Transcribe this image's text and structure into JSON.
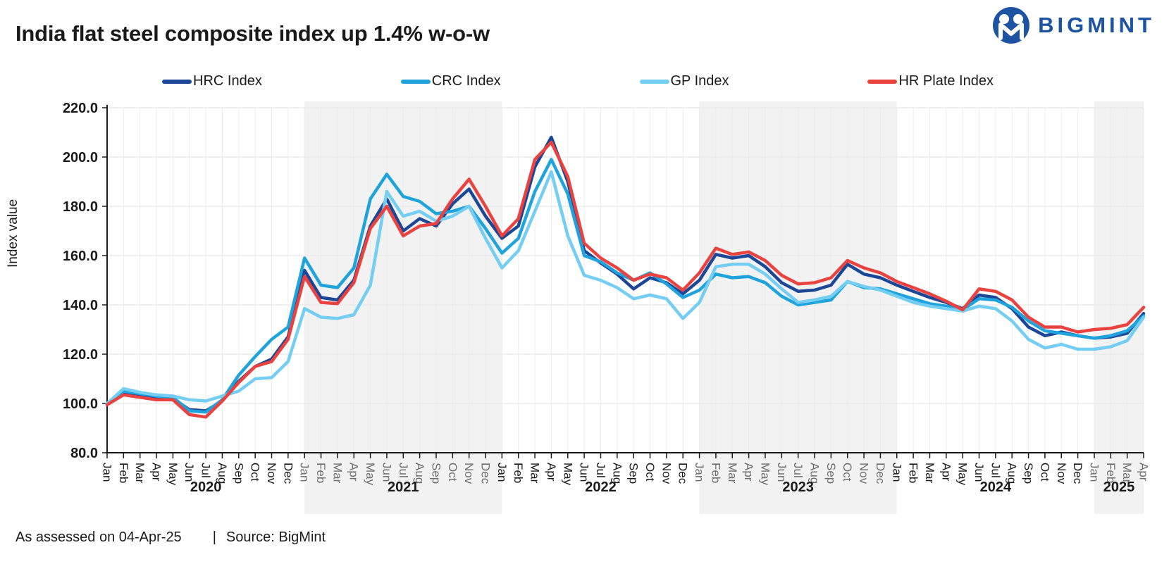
{
  "header": {
    "title": "India flat steel composite index up 1.4% w-o-w",
    "brand": "BIGMINT",
    "brand_color": "#1d53a3"
  },
  "footer": {
    "assessed": "As assessed on 04-Apr-25",
    "separator": "|",
    "source": "Source: BigMint"
  },
  "chart_data": {
    "type": "line",
    "title": "India flat steel composite index up 1.4% w-o-w",
    "ylabel": "Index value",
    "xlabel": "",
    "ylim": [
      80,
      220
    ],
    "ytick_step": 20,
    "grid": true,
    "legend_position": "top",
    "month_labels": [
      "Jan",
      "Feb",
      "Mar",
      "Apr",
      "May",
      "Jun",
      "Jul",
      "Aug",
      "Sep",
      "Oct",
      "Nov",
      "Dec"
    ],
    "years": [
      {
        "label": "2020",
        "months": 12,
        "shaded": false
      },
      {
        "label": "2021",
        "months": 12,
        "shaded": true
      },
      {
        "label": "2022",
        "months": 12,
        "shaded": false
      },
      {
        "label": "2023",
        "months": 12,
        "shaded": true
      },
      {
        "label": "2024",
        "months": 12,
        "shaded": false
      },
      {
        "label": "2025",
        "months": 4,
        "shaded": true
      }
    ],
    "band_color": "#f2f2f2",
    "grid_color": "#e8e8e8",
    "axis_color": "#1a1a1a",
    "shaded_month_label_color": "#6e6e6e",
    "series": [
      {
        "name": "HRC Index",
        "color": "#1c4697",
        "values": [
          100,
          104.5,
          103.5,
          102.5,
          102,
          97.5,
          97,
          101,
          109,
          115,
          118,
          127,
          154,
          143,
          142,
          150,
          172,
          183,
          170,
          175,
          172,
          181,
          187,
          176,
          167,
          172,
          196,
          208,
          190,
          162,
          157,
          152.5,
          146.5,
          151,
          149,
          144.5,
          150,
          160.5,
          159,
          160,
          155.5,
          149,
          145.5,
          146,
          148,
          156.5,
          152.5,
          151,
          148,
          145.5,
          143,
          141,
          138.5,
          144,
          143,
          138.5,
          131,
          127.5,
          129,
          127.5,
          126.5,
          127,
          128.5,
          136.5
        ]
      },
      {
        "name": "CRC Index",
        "color": "#1fa3dc",
        "values": [
          100,
          105,
          104,
          103,
          102.5,
          97,
          96.5,
          101.5,
          111.5,
          119,
          126,
          131,
          159,
          148,
          147,
          155,
          183,
          193,
          184,
          182,
          177,
          178,
          180,
          171,
          161,
          167,
          186,
          199,
          185,
          160,
          157.5,
          153,
          150,
          153,
          148.5,
          143,
          146,
          152.5,
          151,
          151.5,
          149,
          143.5,
          140,
          141,
          142,
          149.5,
          147,
          146.5,
          144.5,
          142.5,
          140.5,
          139.5,
          138,
          142.5,
          142,
          139,
          133.5,
          129.5,
          128.5,
          127.5,
          126.5,
          127.5,
          129.5,
          135.5
        ]
      },
      {
        "name": "GP Index",
        "color": "#74cdf2",
        "values": [
          100,
          106,
          104.5,
          103.5,
          103,
          101.5,
          101,
          103,
          105,
          110,
          110.5,
          117,
          138.5,
          135,
          134.5,
          136,
          148,
          186,
          176,
          178,
          174,
          176,
          180,
          167,
          155,
          162,
          178,
          194,
          168,
          152,
          150,
          147,
          142.5,
          144,
          142.5,
          134.5,
          141,
          155.5,
          156.5,
          156.5,
          152.5,
          146.5,
          141,
          142,
          143.5,
          149.5,
          147.5,
          146,
          143.5,
          141,
          139.5,
          138.5,
          137.5,
          139.5,
          138.5,
          133.5,
          126,
          122.5,
          124,
          122,
          122,
          123,
          125.5,
          135
        ]
      },
      {
        "name": "HR Plate Index",
        "color": "#e9423f",
        "values": [
          99.5,
          103.5,
          102.5,
          101.5,
          101.5,
          95.5,
          94.5,
          101,
          108.5,
          115,
          117,
          126,
          151.5,
          141,
          140.5,
          149,
          171,
          180,
          168,
          172,
          173,
          183,
          191,
          180,
          168,
          175,
          199,
          206,
          192,
          165,
          159,
          155,
          150,
          152.5,
          151,
          146,
          153,
          163,
          160.5,
          161.5,
          158,
          152,
          148.5,
          149,
          151,
          158,
          155,
          153,
          149.5,
          147,
          144.5,
          141.5,
          138,
          146.5,
          145.5,
          142,
          135,
          131,
          131,
          129,
          130,
          130.5,
          132,
          139
        ]
      }
    ]
  }
}
